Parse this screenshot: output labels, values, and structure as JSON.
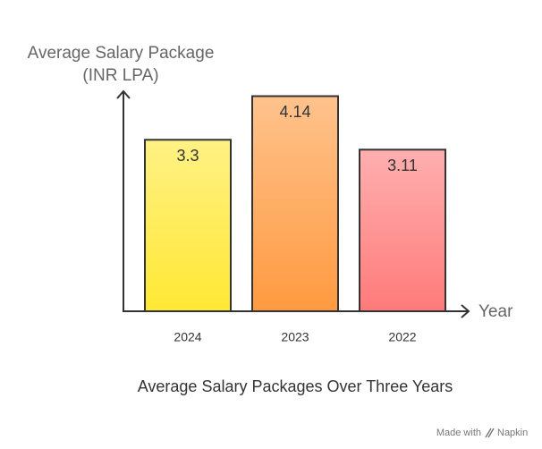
{
  "chart_data": {
    "type": "bar",
    "title": "Average Salary Packages Over Three Years",
    "y_label": [
      "Average Salary Package",
      "(INR LPA)"
    ],
    "x_label": "Year",
    "categories": [
      "2024",
      "2023",
      "2022"
    ],
    "values": [
      3.3,
      4.14,
      3.11
    ],
    "colors": [
      "#ffe833",
      "#ff9a40",
      "#ff7a7a"
    ],
    "ylim": [
      0,
      4.2
    ],
    "watermark": [
      "Made with",
      "Napkin"
    ]
  }
}
